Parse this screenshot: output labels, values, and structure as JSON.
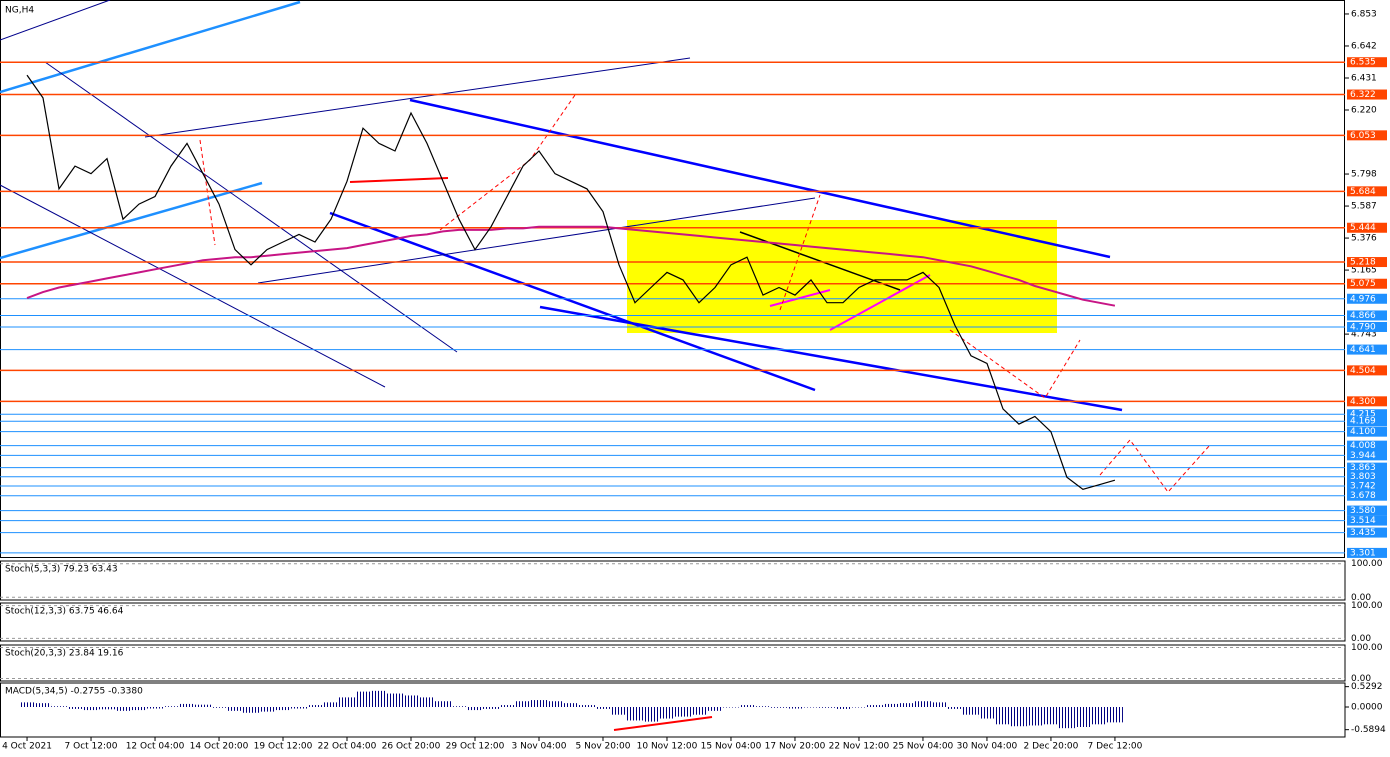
{
  "chart_data": {
    "type": "line",
    "title": "NG,H4",
    "xlim": [
      -1.69,
      82.38
    ],
    "ylim": [
      3.274,
      6.945
    ],
    "xticks": [
      {
        "value": 0,
        "label": "4 Oct 2021"
      },
      {
        "value": 4,
        "label": "7 Oct 12:00"
      },
      {
        "value": 8,
        "label": "12 Oct 04:00"
      },
      {
        "value": 12,
        "label": "14 Oct 20:00"
      },
      {
        "value": 16,
        "label": "19 Oct 12:00"
      },
      {
        "value": 20,
        "label": "22 Oct 04:00"
      },
      {
        "value": 24,
        "label": "26 Oct 20:00"
      },
      {
        "value": 28,
        "label": "29 Oct 12:00"
      },
      {
        "value": 32,
        "label": "3 Nov 04:00"
      },
      {
        "value": 36,
        "label": "5 Nov 20:00"
      },
      {
        "value": 40,
        "label": "10 Nov 12:00"
      },
      {
        "value": 44,
        "label": "15 Nov 04:00"
      },
      {
        "value": 48,
        "label": "17 Nov 20:00"
      },
      {
        "value": 52,
        "label": "22 Nov 12:00"
      },
      {
        "value": 56,
        "label": "25 Nov 04:00"
      },
      {
        "value": 60,
        "label": "30 Nov 04:00"
      },
      {
        "value": 64,
        "label": "2 Dec 20:00"
      },
      {
        "value": 68,
        "label": "7 Dec 12:00"
      }
    ],
    "yticks": [
      6.853,
      6.642,
      6.431,
      {
        "value": 6.22,
        "label": "6.220"
      },
      5.798,
      5.587,
      5.376,
      5.165,
      4.743
    ],
    "levels": [
      {
        "value": 6.535,
        "color": "#ff4500"
      },
      {
        "value": 6.322,
        "color": "#ff4500"
      },
      {
        "value": 6.053,
        "color": "#ff4500"
      },
      {
        "value": 5.684,
        "color": "#ff4500"
      },
      {
        "value": 5.444,
        "color": "#ff4500"
      },
      {
        "value": 5.218,
        "color": "#ff4500"
      },
      {
        "value": 5.075,
        "color": "#ff4500"
      },
      {
        "value": 4.976,
        "color": "#1e90ff"
      },
      {
        "value": 4.866,
        "color": "#1e90ff"
      },
      {
        "value": 4.79,
        "label": "4.790",
        "color": "#1e90ff"
      },
      {
        "value": 4.641,
        "color": "#1e90ff"
      },
      {
        "value": 4.504,
        "color": "#ff4500"
      },
      {
        "value": 4.3,
        "label": "4.300",
        "color": "#ff4500"
      },
      {
        "value": 4.215,
        "color": "#1e90ff"
      },
      {
        "value": 4.169,
        "color": "#1e90ff"
      },
      {
        "value": 4.1,
        "label": "4.100",
        "color": "#1e90ff"
      },
      {
        "value": 4.008,
        "color": "#1e90ff"
      },
      {
        "value": 3.944,
        "color": "#1e90ff"
      },
      {
        "value": 3.863,
        "color": "#1e90ff"
      },
      {
        "value": 3.803,
        "color": "#1e90ff"
      },
      {
        "value": 3.742,
        "color": "#1e90ff"
      },
      {
        "value": 3.678,
        "color": "#1e90ff"
      },
      {
        "value": 3.58,
        "label": "3.580",
        "color": "#1e90ff"
      },
      {
        "value": 3.514,
        "color": "#1e90ff"
      },
      {
        "value": 3.435,
        "color": "#1e90ff"
      },
      {
        "value": 3.301,
        "color": "#1e90ff"
      }
    ],
    "series": [
      {
        "name": "NG,H4",
        "color": "#000000",
        "values": [
          6.45,
          6.3,
          5.7,
          5.85,
          5.8,
          5.9,
          5.5,
          5.6,
          5.65,
          5.85,
          6.0,
          5.8,
          5.6,
          5.3,
          5.2,
          5.3,
          5.35,
          5.4,
          5.35,
          5.5,
          5.75,
          6.1,
          6.0,
          5.95,
          6.2,
          6.0,
          5.75,
          5.5,
          5.3,
          5.45,
          5.65,
          5.85,
          5.95,
          5.8,
          5.75,
          5.7,
          5.55,
          5.2,
          4.95,
          5.05,
          5.15,
          5.1,
          4.95,
          5.05,
          5.2,
          5.25,
          5.0,
          5.05,
          5.0,
          5.1,
          4.95,
          4.95,
          5.05,
          5.1,
          5.1,
          5.1,
          5.15,
          5.05,
          4.8,
          4.6,
          4.55,
          4.25,
          4.15,
          4.2,
          4.1,
          3.8,
          3.72,
          3.75,
          3.78
        ]
      },
      {
        "name": "MA",
        "color": "#c71585",
        "values": [
          4.98,
          5.02,
          5.05,
          5.07,
          5.09,
          5.11,
          5.13,
          5.15,
          5.17,
          5.19,
          5.21,
          5.23,
          5.24,
          5.25,
          5.25,
          5.26,
          5.27,
          5.28,
          5.29,
          5.3,
          5.31,
          5.33,
          5.35,
          5.37,
          5.39,
          5.4,
          5.42,
          5.43,
          5.43,
          5.43,
          5.44,
          5.44,
          5.45,
          5.45,
          5.45,
          5.45,
          5.45,
          5.44,
          5.43,
          5.42,
          5.41,
          5.4,
          5.39,
          5.38,
          5.37,
          5.36,
          5.35,
          5.34,
          5.33,
          5.32,
          5.31,
          5.3,
          5.29,
          5.28,
          5.27,
          5.26,
          5.25,
          5.23,
          5.21,
          5.19,
          5.16,
          5.13,
          5.1,
          5.06,
          5.03,
          5.0,
          4.97,
          4.95,
          4.93
        ]
      }
    ],
    "panels": [
      {
        "label": "Stoch(5,3,3) 79.23 63.43",
        "ylim": [
          -8,
          108
        ],
        "yticks": [
          {
            "value": 100,
            "label": "100.00"
          },
          {
            "value": 0,
            "label": "0.00"
          }
        ]
      },
      {
        "label": "Stoch(12,3,3) 63.75 46.64",
        "ylim": [
          -8,
          108
        ],
        "yticks": [
          {
            "value": 100,
            "label": "100.00"
          },
          {
            "value": 0,
            "label": "0.00"
          }
        ]
      },
      {
        "label": "Stoch(20,3,3) 23.84 19.16",
        "ylim": [
          -8,
          108
        ],
        "yticks": [
          {
            "value": 100,
            "label": "100.00"
          },
          {
            "value": 0,
            "label": "0.00"
          }
        ]
      }
    ],
    "macd": {
      "label": "MACD(5,34,5) -0.2755 -0.3380",
      "ylim": [
        -0.78,
        0.624
      ],
      "yticks": [
        0.5292,
        {
          "value": 0,
          "label": "0.0000"
        },
        -0.5894
      ],
      "color": "#000080",
      "values": [
        0.12,
        0.1,
        0.02,
        -0.05,
        -0.08,
        -0.06,
        -0.1,
        -0.08,
        -0.04,
        0.02,
        0.08,
        0.06,
        -0.02,
        -0.1,
        -0.15,
        -0.12,
        -0.08,
        -0.04,
        0.05,
        0.12,
        0.25,
        0.4,
        0.42,
        0.35,
        0.3,
        0.25,
        0.15,
        0.02,
        -0.08,
        -0.05,
        0.05,
        0.15,
        0.18,
        0.15,
        0.1,
        0.05,
        -0.05,
        -0.2,
        -0.35,
        -0.38,
        -0.3,
        -0.25,
        -0.2,
        -0.1,
        0.0,
        0.05,
        0.02,
        -0.02,
        -0.04,
        0.0,
        -0.02,
        -0.05,
        0.0,
        0.05,
        0.08,
        0.1,
        0.15,
        0.12,
        -0.05,
        -0.2,
        -0.3,
        -0.45,
        -0.5,
        -0.48,
        -0.45,
        -0.55,
        -0.52,
        -0.45,
        -0.4
      ]
    }
  }
}
